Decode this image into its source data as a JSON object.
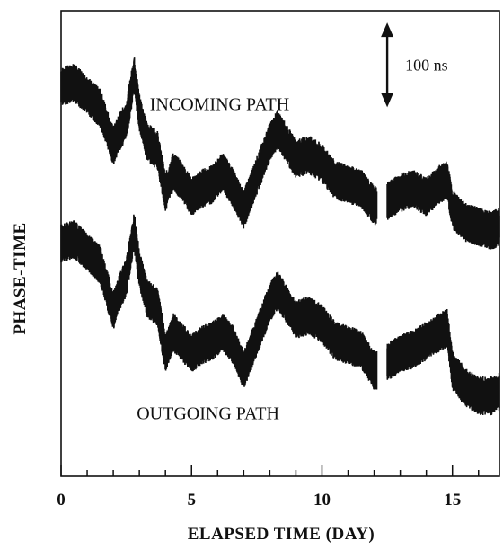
{
  "chart_data": {
    "type": "line",
    "title": "",
    "xlabel": "ELAPSED TIME (DAY)",
    "ylabel": "PHASE-TIME",
    "xlim": [
      0,
      16.8
    ],
    "ylim": [
      -400,
      150
    ],
    "x_ticks": [
      0,
      5,
      10,
      15
    ],
    "x_minor_tick_step": 1,
    "y_ticks_shown": false,
    "grid": false,
    "legend": "none",
    "scale_bar": {
      "label": "100 ns",
      "value_ns": 100,
      "x_day": 12.5,
      "y_top": 136,
      "y_bottom": 36
    },
    "gap_days": [
      12.1,
      12.5
    ],
    "series": [
      {
        "name": "INCOMING PATH",
        "color": "#111111",
        "x": [
          0,
          0.5,
          1,
          1.5,
          2,
          2.2,
          2.5,
          2.8,
          3.0,
          3.3,
          3.7,
          4.0,
          4.3,
          4.6,
          5.0,
          5.4,
          5.8,
          6.2,
          6.6,
          7.0,
          7.5,
          8.0,
          8.3,
          8.6,
          9.0,
          9.5,
          10.0,
          10.5,
          11.0,
          11.5,
          12.0,
          12.1,
          12.5,
          13.0,
          13.5,
          14.0,
          14.5,
          14.8,
          15.0,
          15.5,
          16.0,
          16.5,
          16.8
        ],
        "y": [
          60,
          65,
          50,
          35,
          -10,
          5,
          20,
          75,
          30,
          -5,
          -15,
          -65,
          -40,
          -50,
          -70,
          -60,
          -55,
          -40,
          -60,
          -85,
          -45,
          -5,
          10,
          -5,
          -25,
          -20,
          -30,
          -50,
          -55,
          -60,
          -80,
          -80,
          -75,
          -65,
          -60,
          -70,
          -55,
          -50,
          -85,
          -100,
          -105,
          -110,
          -105
        ]
      },
      {
        "name": "OUTGOING PATH",
        "color": "#111111",
        "x": [
          0,
          0.5,
          1,
          1.5,
          2,
          2.2,
          2.5,
          2.8,
          3.0,
          3.3,
          3.7,
          4.0,
          4.3,
          4.6,
          5.0,
          5.4,
          5.8,
          6.2,
          6.6,
          7.0,
          7.5,
          8.0,
          8.3,
          8.6,
          9.0,
          9.5,
          10.0,
          10.5,
          11.0,
          11.5,
          12.0,
          12.1,
          12.5,
          13.0,
          13.5,
          14.0,
          14.5,
          14.8,
          15.0,
          15.5,
          16.0,
          16.5,
          16.8
        ],
        "y": [
          -125,
          -120,
          -135,
          -150,
          -205,
          -185,
          -165,
          -110,
          -155,
          -190,
          -200,
          -255,
          -230,
          -240,
          -255,
          -245,
          -240,
          -230,
          -245,
          -275,
          -235,
          -195,
          -180,
          -195,
          -215,
          -210,
          -220,
          -240,
          -245,
          -250,
          -275,
          -275,
          -265,
          -255,
          -250,
          -240,
          -230,
          -225,
          -275,
          -295,
          -305,
          -305,
          -300
        ]
      }
    ],
    "annotations": [
      {
        "text": "INCOMING PATH",
        "x_day": 3.4,
        "y": 40
      },
      {
        "text": "OUTGOING PATH",
        "x_day": 2.9,
        "y": -325
      }
    ]
  }
}
